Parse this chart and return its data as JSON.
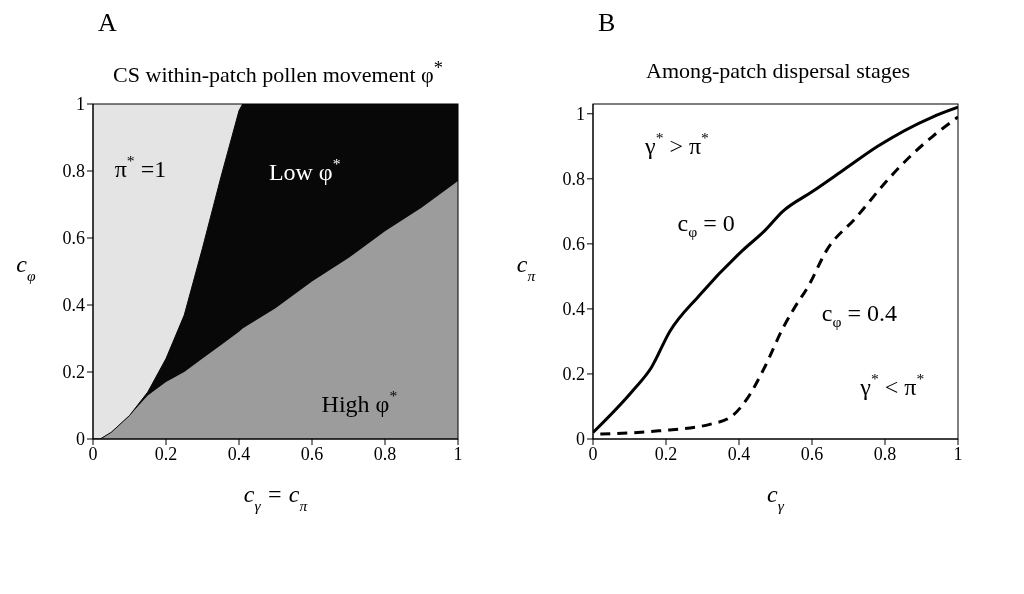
{
  "chart_data": [
    {
      "type": "area",
      "title": "CS within-patch pollen movement φ$^{*}$",
      "xlabel": "c$_{γ}$ = c$_{π}$",
      "ylabel": "c$_{φ}$",
      "stacked": true,
      "x": [
        0,
        0.02,
        0.05,
        0.1,
        0.15,
        0.2,
        0.25,
        0.3,
        0.35,
        0.4,
        0.41,
        0.5,
        0.6,
        0.7,
        0.8,
        0.9,
        1
      ],
      "series": [
        {
          "color": "#9c9c9c",
          "values": [
            0,
            0,
            0.02,
            0.07,
            0.13,
            0.17,
            0.2,
            0.24,
            0.28,
            0.32,
            0.33,
            0.39,
            0.47,
            0.54,
            0.62,
            0.69,
            0.77
          ]
        },
        {
          "color": "#080808",
          "values": [
            0,
            0,
            0,
            0,
            0.01,
            0.07,
            0.17,
            0.33,
            0.5,
            0.66,
            0.67,
            0.61,
            0.53,
            0.46,
            0.38,
            0.31,
            0.23
          ]
        }
      ],
      "xlim": [
        0,
        1
      ],
      "ylim": [
        0,
        1
      ],
      "xticks": [
        0,
        0.2,
        0.4,
        0.6,
        0.8,
        1
      ],
      "yticks": [
        0,
        0.2,
        0.4,
        0.6,
        0.8,
        1
      ],
      "annotations": [
        "A",
        "π$^{*}$ =1",
        "Low φ$^{*}$",
        "High φ$^{*}$"
      ]
    },
    {
      "type": "line",
      "title": "Among-patch dispersal stages",
      "xlabel": "c$_{γ}$",
      "ylabel": "c$_{π}$",
      "series": [
        {
          "color": "#000000",
          "line_style": "solid",
          "x": [
            0,
            0.11,
            0.16,
            0.21,
            0.29,
            0.41,
            0.47,
            0.52,
            0.6,
            0.69,
            0.78,
            0.93,
            1
          ],
          "values": [
            0.02,
            0.15,
            0.22,
            0.33,
            0.44,
            0.58,
            0.64,
            0.7,
            0.76,
            0.83,
            0.9,
            0.99,
            1.02
          ]
        },
        {
          "color": "#000000",
          "line_style": "dashed",
          "x": [
            0.02,
            0.18,
            0.32,
            0.38,
            0.42,
            0.47,
            0.52,
            0.55,
            0.59,
            0.64,
            0.72,
            0.81,
            0.87,
            0.93,
            1
          ],
          "values": [
            0.015,
            0.025,
            0.045,
            0.07,
            0.12,
            0.22,
            0.34,
            0.4,
            0.47,
            0.58,
            0.68,
            0.8,
            0.87,
            0.93,
            0.99
          ]
        }
      ],
      "xlim": [
        0,
        1
      ],
      "ylim": [
        0,
        1.03
      ],
      "xticks": [
        0,
        0.2,
        0.4,
        0.6,
        0.8,
        1
      ],
      "yticks": [
        0,
        0.2,
        0.4,
        0.6,
        0.8,
        1
      ],
      "annotations": [
        "B",
        "c$_{φ}$ = 0",
        "c$_{φ}$ = 0.4",
        "γ$^{*}$ > π$^{*}$",
        "γ$^{*}$ < π$^{*}$"
      ]
    }
  ]
}
